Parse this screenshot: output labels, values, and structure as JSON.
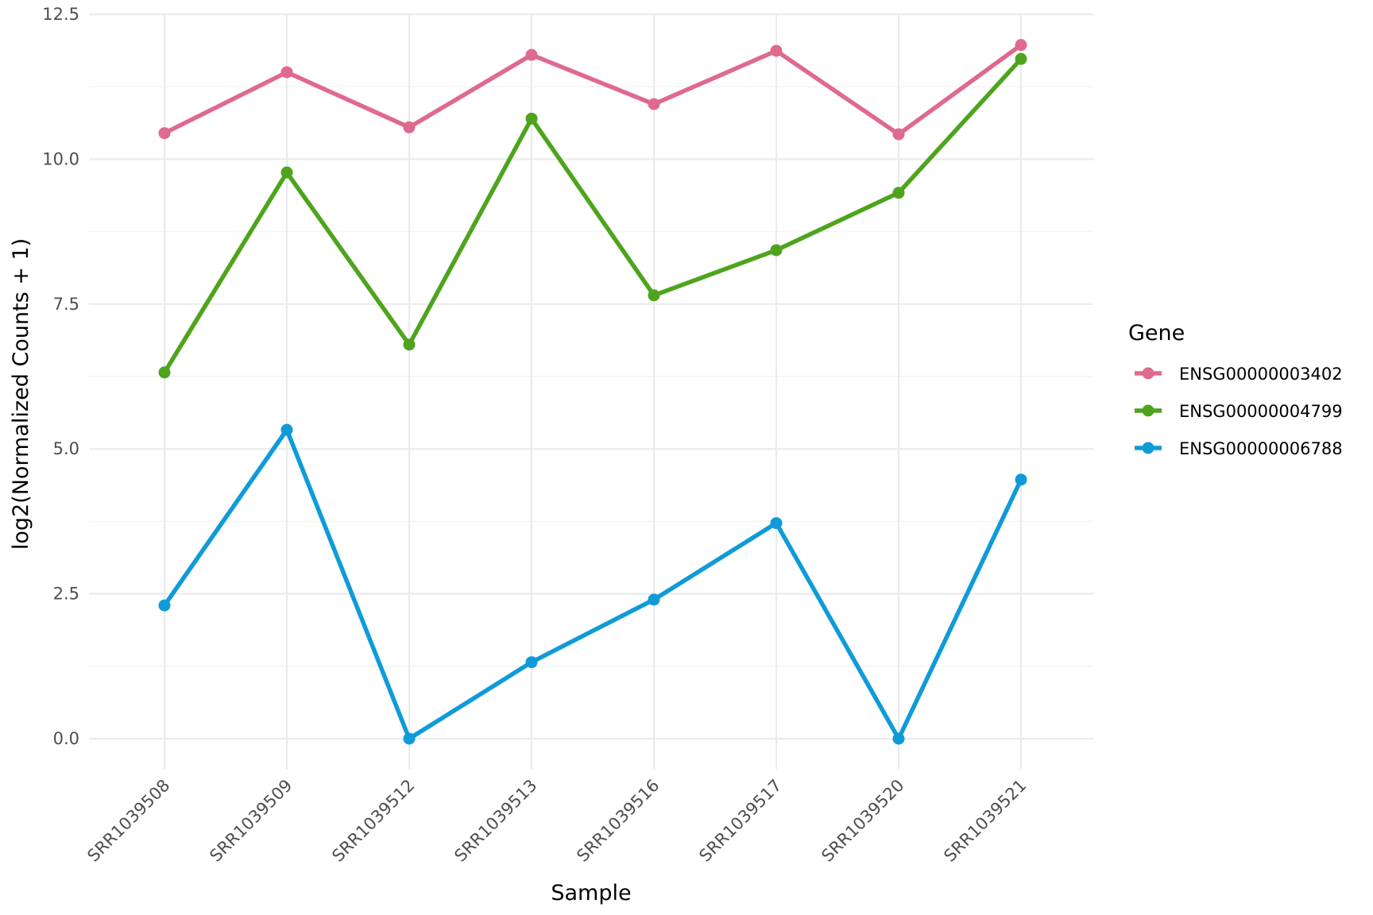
{
  "chart_data": {
    "type": "line",
    "title": "",
    "xlabel": "Sample",
    "ylabel": "log2(Normalized Counts + 1)",
    "categories": [
      "SRR1039508",
      "SRR1039509",
      "SRR1039512",
      "SRR1039513",
      "SRR1039516",
      "SRR1039517",
      "SRR1039520",
      "SRR1039521"
    ],
    "ylim": [
      -0.6,
      12.5
    ],
    "y_ticks": [
      0.0,
      2.5,
      5.0,
      7.5,
      10.0,
      12.5
    ],
    "y_tick_labels": [
      "0.0",
      "2.5",
      "5.0",
      "7.5",
      "10.0",
      "12.5"
    ],
    "grid": true,
    "legend": {
      "title": "Gene",
      "placement": "right"
    },
    "series": [
      {
        "name": "ENSG00000003402",
        "color": "#df6a8d",
        "values": [
          10.45,
          11.5,
          10.55,
          11.8,
          10.95,
          11.87,
          10.43,
          11.97
        ]
      },
      {
        "name": "ENSG00000004799",
        "color": "#4ea41d",
        "values": [
          6.32,
          9.77,
          6.8,
          10.7,
          7.65,
          8.43,
          9.42,
          11.73
        ]
      },
      {
        "name": "ENSG00000006788",
        "color": "#0f9bd8",
        "values": [
          2.3,
          5.33,
          0.0,
          1.32,
          2.4,
          3.72,
          0.0,
          4.47
        ]
      }
    ]
  }
}
